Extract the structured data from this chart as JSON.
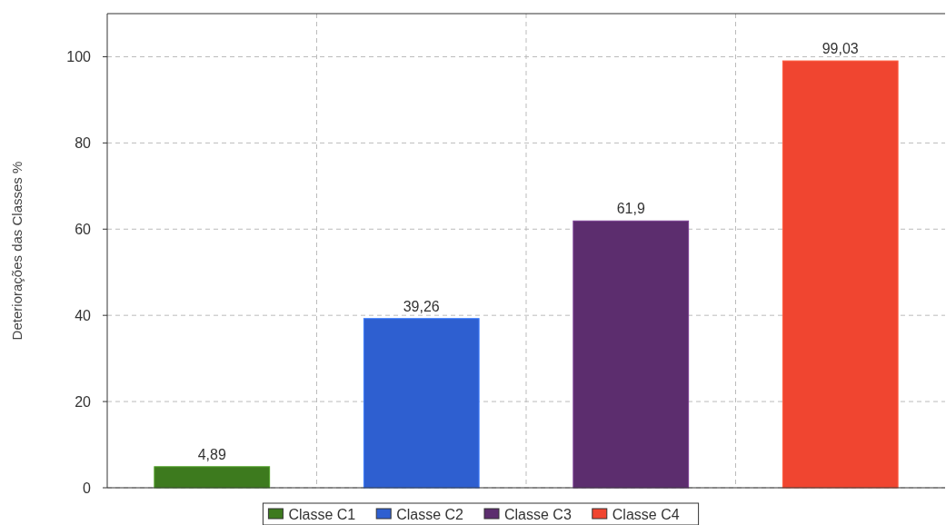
{
  "chart_data": {
    "type": "bar",
    "ylabel": "Deteriorações das Classes %",
    "categories": [
      null,
      null,
      null,
      null
    ],
    "series": [
      {
        "name": "Classe C1",
        "color": "#3d7a1e",
        "values": [
          4.89,
          null,
          null,
          null
        ],
        "value_labels": [
          "4,89",
          null,
          null,
          null
        ]
      },
      {
        "name": "Classe C2",
        "color": "#2e5fd0",
        "values": [
          null,
          39.26,
          null,
          null
        ],
        "value_labels": [
          null,
          "39,26",
          null,
          null
        ]
      },
      {
        "name": "Classe C3",
        "color": "#5c2d6e",
        "values": [
          null,
          null,
          61.9,
          null
        ],
        "value_labels": [
          null,
          null,
          "61,9",
          null
        ]
      },
      {
        "name": "Classe C4",
        "color": "#f04530",
        "values": [
          null,
          null,
          null,
          99.03
        ],
        "value_labels": [
          null,
          null,
          null,
          "99,03"
        ]
      }
    ],
    "ylim": [
      0,
      110
    ],
    "yticks": [
      0,
      20,
      40,
      60,
      80,
      100
    ],
    "grid": true,
    "legend": "bottom"
  }
}
